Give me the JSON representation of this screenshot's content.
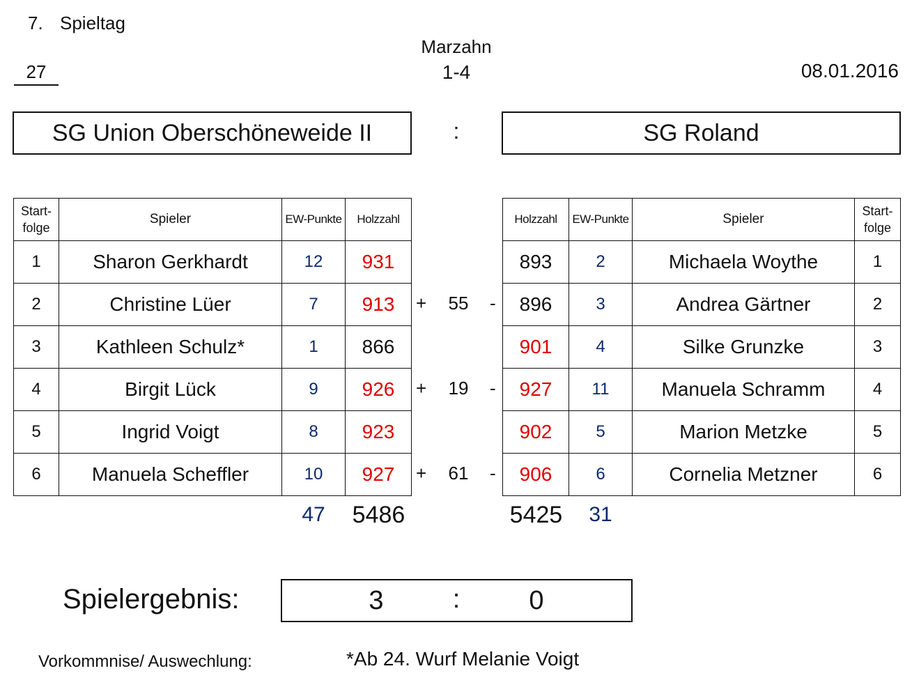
{
  "header": {
    "matchday_number": "7.",
    "matchday_label": "Spieltag",
    "venue": "Marzahn",
    "lanes": "1-4",
    "game_number": "27",
    "date": "08.01.2016"
  },
  "teams": {
    "home": "SG Union Oberschöneweide II",
    "separator": ":",
    "away": "SG Roland"
  },
  "columns": {
    "start": "Start-folge",
    "player": "Spieler",
    "ew": "EW-Punkte",
    "holz": "Holzzahl"
  },
  "home_players": [
    {
      "start": "1",
      "name": "Sharon Gerkhardt",
      "ew": "12",
      "holz": "931",
      "holz_color": "#e00000"
    },
    {
      "start": "2",
      "name": "Christine Lüer",
      "ew": "7",
      "holz": "913",
      "holz_color": "#e00000"
    },
    {
      "start": "3",
      "name": "Kathleen Schulz*",
      "ew": "1",
      "holz": "866",
      "holz_color": "#111111"
    },
    {
      "start": "4",
      "name": "Birgit Lück",
      "ew": "9",
      "holz": "926",
      "holz_color": "#e00000"
    },
    {
      "start": "5",
      "name": "Ingrid Voigt",
      "ew": "8",
      "holz": "923",
      "holz_color": "#e00000"
    },
    {
      "start": "6",
      "name": "Manuela Scheffler",
      "ew": "10",
      "holz": "927",
      "holz_color": "#e00000"
    }
  ],
  "away_players": [
    {
      "start": "1",
      "name": "Michaela Woythe",
      "ew": "2",
      "holz": "893",
      "holz_color": "#111111"
    },
    {
      "start": "2",
      "name": "Andrea Gärtner",
      "ew": "3",
      "holz": "896",
      "holz_color": "#111111"
    },
    {
      "start": "3",
      "name": "Silke Grunzke",
      "ew": "4",
      "holz": "901",
      "holz_color": "#e00000"
    },
    {
      "start": "4",
      "name": "Manuela Schramm",
      "ew": "11",
      "holz": "927",
      "holz_color": "#e00000"
    },
    {
      "start": "5",
      "name": "Marion Metzke",
      "ew": "5",
      "holz": "902",
      "holz_color": "#e00000"
    },
    {
      "start": "6",
      "name": "Cornelia Metzner",
      "ew": "6",
      "holz": "906",
      "holz_color": "#e00000"
    }
  ],
  "pair_differences": [
    {
      "plus": "+",
      "value": "55",
      "minus": "-"
    },
    {
      "plus": "+",
      "value": "19",
      "minus": "-"
    },
    {
      "plus": "+",
      "value": "61",
      "minus": "-"
    }
  ],
  "totals": {
    "home_ew": "47",
    "home_holz": "5486",
    "away_holz": "5425",
    "away_ew": "31"
  },
  "result": {
    "label": "Spielergebnis:",
    "home": "3",
    "separator": ":",
    "away": "0"
  },
  "incidents": {
    "label": "Vorkommnise/ Auswechlung:",
    "text": "*Ab 24. Wurf Melanie Voigt"
  },
  "colors": {
    "ew_blue": "#0b2a6b",
    "highlight_red": "#e00000"
  }
}
